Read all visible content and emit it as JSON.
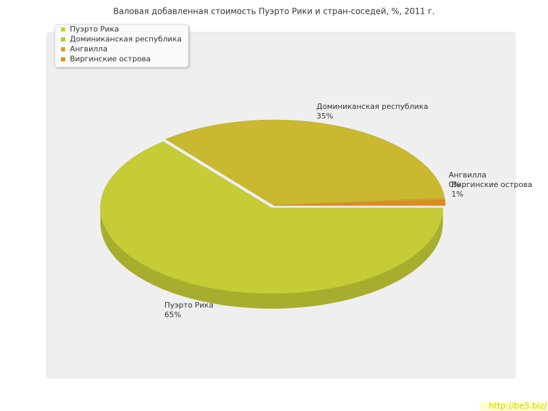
{
  "chart_data": {
    "type": "pie3d",
    "title": "Валовая добавленная стоимость Пуэрто Рики и стран-соседей, %, 2011 г.",
    "categories": [
      "Пуэрто Рика",
      "Доминиканская республика",
      "Ангвилла",
      "Виргинские острова"
    ],
    "values": [
      65,
      35,
      0.4,
      1
    ],
    "value_labels": [
      "65%",
      "35%",
      "0%",
      "1%"
    ],
    "colors": [
      "#c5cc35",
      "#c9b830",
      "#d2a12e",
      "#df8a22"
    ],
    "legend": "top-left",
    "watermark": "http://be5.biz/"
  }
}
